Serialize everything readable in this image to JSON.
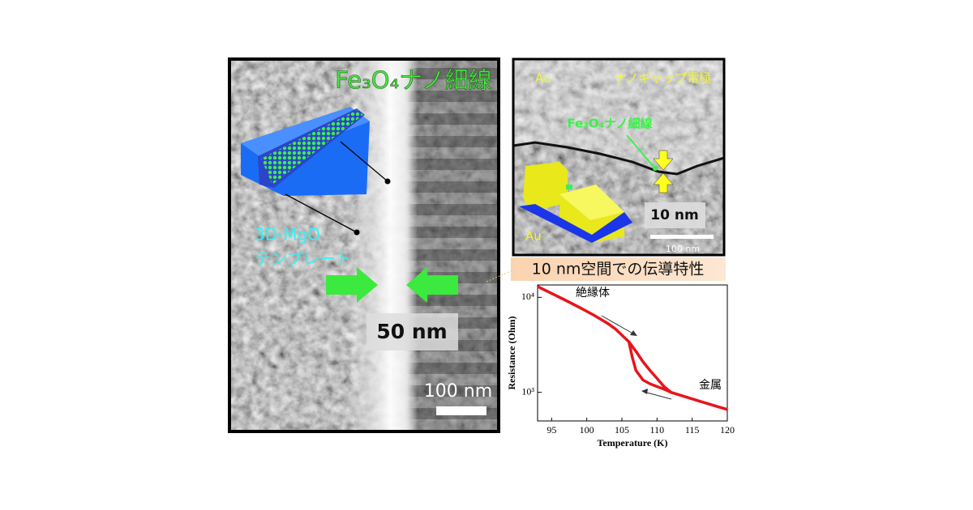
{
  "left_panel": {
    "title": "Fe₃O₄ナノ細線",
    "template_label": [
      "3D-MgO",
      "テンプレート"
    ],
    "width_label": "50 nm",
    "scale_bar": "100 nm"
  },
  "right_panel": {
    "label_au_top": "Au",
    "title": "ナノギャップ電極",
    "wire_label": "Fe₃O₄ナノ細線",
    "gap_label": "10 nm",
    "label_au_bottom": "Au",
    "scale_bar": "100 nm"
  },
  "chart_data": {
    "type": "line",
    "title": "10 nm空間での伝導特性",
    "x_label": "Temperature (K)",
    "y_label": "Resistance (Ohm)",
    "log_y": true,
    "xlim": [
      93,
      120
    ],
    "xticks": [
      95,
      100,
      105,
      110,
      115,
      120
    ],
    "ylim": [
      500,
      13500
    ],
    "yticks": [
      {
        "value": 1000,
        "label": "10³"
      },
      {
        "value": 10000,
        "label": "10⁴"
      }
    ],
    "annotations": [
      "絶縁体",
      "金属"
    ],
    "series": [
      {
        "color": "#e8141b",
        "x": [
          93,
          95,
          97,
          99,
          101,
          103,
          104,
          105,
          106,
          107,
          108,
          109,
          110,
          111,
          112,
          114,
          116,
          118,
          120
        ],
        "values": [
          13000,
          11000,
          9300,
          7800,
          6500,
          5300,
          4700,
          4000,
          3400,
          2700,
          2100,
          1700,
          1400,
          1150,
          1000,
          900,
          810,
          730,
          660
        ]
      },
      {
        "color": "#e8141b",
        "x": [
          112,
          111,
          110,
          109,
          108,
          107,
          106.5,
          106
        ],
        "values": [
          1000,
          1080,
          1150,
          1230,
          1350,
          1700,
          2300,
          3400
        ]
      }
    ]
  }
}
